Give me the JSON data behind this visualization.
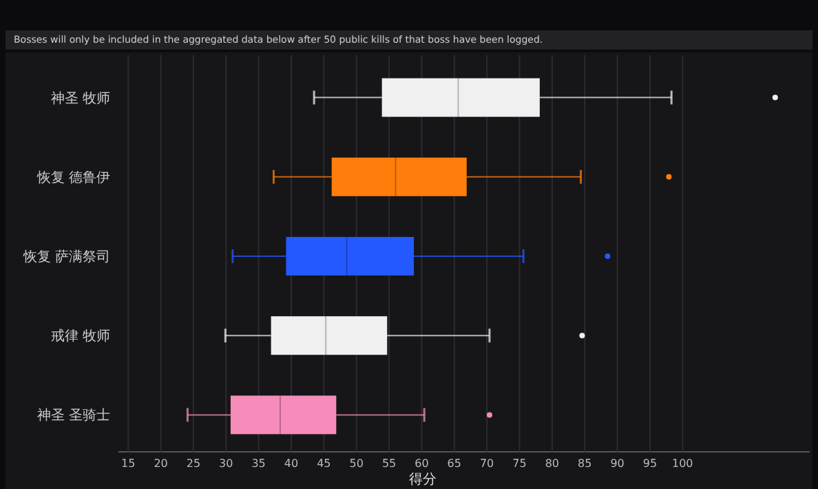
{
  "chart_data": {
    "type": "box",
    "orientation": "horizontal",
    "annotations": [
      "Bosses will only be included in the aggregated data below after 50 public kills of that boss have been logged."
    ],
    "categories": [
      "神圣 牧师",
      "恢复 德鲁伊",
      "恢复 萨满祭司",
      "戒律 牧师",
      "神圣 圣骑士"
    ],
    "colors": [
      "#f0f0f0",
      "#ff7d0a",
      "#2459ff",
      "#f0f0f0",
      "#f58cba"
    ],
    "boxes": [
      {
        "low": 43.5,
        "q1": 53.9,
        "median": 65.6,
        "q3": 78.1,
        "high": 98.3,
        "outliers": [
          114.2
        ]
      },
      {
        "low": 37.3,
        "q1": 46.2,
        "median": 56.0,
        "q3": 66.9,
        "high": 84.4,
        "outliers": [
          97.9
        ]
      },
      {
        "low": 31.0,
        "q1": 39.2,
        "median": 48.5,
        "q3": 58.8,
        "high": 75.6,
        "outliers": [
          88.5
        ]
      },
      {
        "low": 29.9,
        "q1": 36.9,
        "median": 45.3,
        "q3": 54.7,
        "high": 70.4,
        "outliers": [
          84.6
        ]
      },
      {
        "low": 24.1,
        "q1": 30.7,
        "median": 38.3,
        "q3": 46.9,
        "high": 60.4,
        "outliers": [
          70.4
        ]
      }
    ],
    "xlabel": "得分",
    "xlim": [
      13.5,
      119.5
    ],
    "xticks": [
      15,
      20,
      25,
      30,
      35,
      40,
      45,
      50,
      55,
      60,
      65,
      70,
      75,
      80,
      85,
      90,
      95,
      100
    ],
    "grid": "x"
  }
}
